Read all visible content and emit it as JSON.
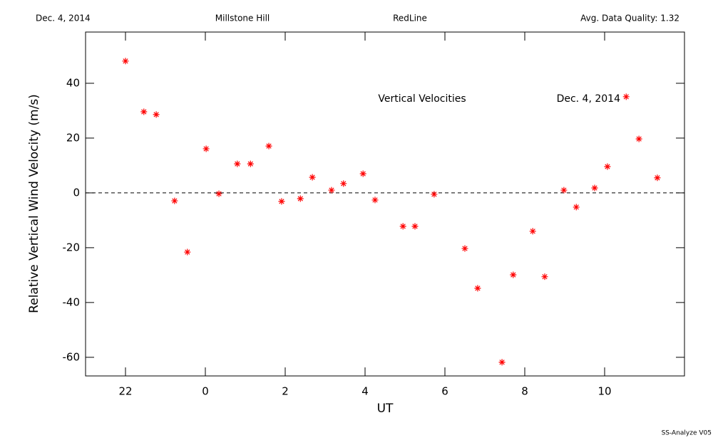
{
  "chart_data": {
    "type": "scatter",
    "header": [
      "Dec. 4, 2014",
      "Millstone Hill",
      "RedLine",
      "Avg. Data Quality: 1.32"
    ],
    "annotations": [
      "Vertical Velocities",
      "Dec. 4, 2014"
    ],
    "footer": "SS-Analyze V05",
    "x_label": "UT",
    "y_label": "Relative Vertical Wind Velocity (m/s)",
    "xlim": [
      -3,
      12
    ],
    "xticks": [
      {
        "value": -2,
        "label": "22"
      },
      0,
      2,
      4,
      6,
      8,
      10
    ],
    "ylim": [
      -66.8,
      58.7
    ],
    "yticks": [
      -60,
      -40,
      -20,
      0,
      20,
      40
    ],
    "reference_line": 0,
    "color": "#ff0000",
    "x": [
      -2.0,
      -1.54,
      -1.23,
      -0.77,
      -0.45,
      0.02,
      0.34,
      0.8,
      1.13,
      1.59,
      1.91,
      2.38,
      2.68,
      3.16,
      3.46,
      3.95,
      4.25,
      4.95,
      5.25,
      5.73,
      6.5,
      6.82,
      7.43,
      7.71,
      8.2,
      8.5,
      8.98,
      9.29,
      9.75,
      10.07,
      10.54,
      10.86,
      11.32
    ],
    "values": [
      48.1,
      29.6,
      28.6,
      -2.9,
      -21.6,
      16.1,
      -0.3,
      10.6,
      10.6,
      17.1,
      -3.1,
      -2.1,
      5.7,
      1.0,
      3.4,
      7.0,
      -2.6,
      -12.2,
      -12.2,
      -0.5,
      -20.3,
      -34.8,
      -61.8,
      -29.9,
      -14.0,
      -30.6,
      1.0,
      -5.2,
      1.8,
      9.6,
      35.1,
      19.7,
      5.5
    ]
  }
}
